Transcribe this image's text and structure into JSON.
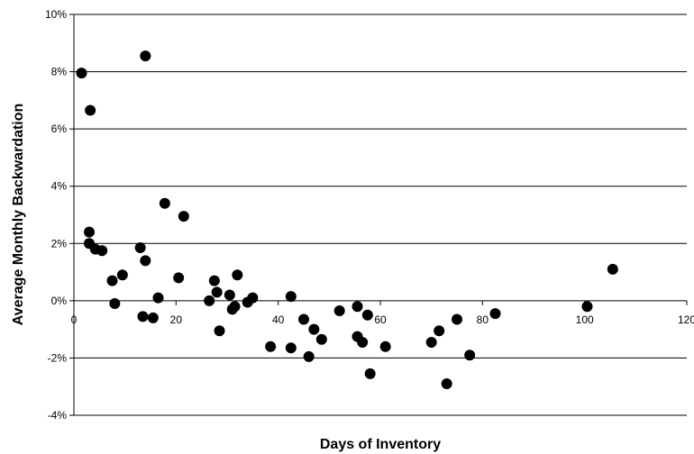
{
  "chart_data": {
    "type": "scatter",
    "title": "",
    "xlabel": "Days of Inventory",
    "ylabel": "Average Monthly Backwardation",
    "xlim": [
      0,
      120
    ],
    "ylim": [
      -4,
      10
    ],
    "x_ticks": [
      0,
      20,
      40,
      60,
      80,
      100,
      120
    ],
    "y_ticks": [
      -4,
      -2,
      0,
      2,
      4,
      6,
      8,
      10
    ],
    "y_unit": "%",
    "grid": "horizontal",
    "legend": "none",
    "marker_color": "#000000",
    "points": [
      {
        "x": 1.5,
        "y": 7.95
      },
      {
        "x": 3.2,
        "y": 6.65
      },
      {
        "x": 14.0,
        "y": 8.55
      },
      {
        "x": 3.0,
        "y": 2.4
      },
      {
        "x": 3.0,
        "y": 2.0
      },
      {
        "x": 4.2,
        "y": 1.8
      },
      {
        "x": 5.5,
        "y": 1.75
      },
      {
        "x": 7.5,
        "y": 0.7
      },
      {
        "x": 8.0,
        "y": -0.1
      },
      {
        "x": 9.5,
        "y": 0.9
      },
      {
        "x": 13.0,
        "y": 1.85
      },
      {
        "x": 14.0,
        "y": 1.4
      },
      {
        "x": 13.5,
        "y": -0.55
      },
      {
        "x": 15.5,
        "y": -0.6
      },
      {
        "x": 16.5,
        "y": 0.1
      },
      {
        "x": 17.8,
        "y": 3.4
      },
      {
        "x": 20.5,
        "y": 0.8
      },
      {
        "x": 21.5,
        "y": 2.95
      },
      {
        "x": 26.5,
        "y": 0.0
      },
      {
        "x": 27.5,
        "y": 0.7
      },
      {
        "x": 28.0,
        "y": 0.3
      },
      {
        "x": 28.5,
        "y": -1.05
      },
      {
        "x": 30.5,
        "y": 0.2
      },
      {
        "x": 31.0,
        "y": -0.3
      },
      {
        "x": 31.5,
        "y": -0.2
      },
      {
        "x": 32.0,
        "y": 0.9
      },
      {
        "x": 34.0,
        "y": -0.05
      },
      {
        "x": 35.0,
        "y": 0.1
      },
      {
        "x": 38.5,
        "y": -1.6
      },
      {
        "x": 42.5,
        "y": 0.15
      },
      {
        "x": 42.5,
        "y": -1.65
      },
      {
        "x": 45.0,
        "y": -0.65
      },
      {
        "x": 46.0,
        "y": -1.95
      },
      {
        "x": 47.0,
        "y": -1.0
      },
      {
        "x": 48.5,
        "y": -1.35
      },
      {
        "x": 52.0,
        "y": -0.35
      },
      {
        "x": 55.5,
        "y": -0.2
      },
      {
        "x": 55.5,
        "y": -1.25
      },
      {
        "x": 56.5,
        "y": -1.45
      },
      {
        "x": 57.5,
        "y": -0.5
      },
      {
        "x": 58.0,
        "y": -2.55
      },
      {
        "x": 61.0,
        "y": -1.6
      },
      {
        "x": 70.0,
        "y": -1.45
      },
      {
        "x": 71.5,
        "y": -1.05
      },
      {
        "x": 73.0,
        "y": -2.9
      },
      {
        "x": 75.0,
        "y": -0.65
      },
      {
        "x": 77.5,
        "y": -1.9
      },
      {
        "x": 82.5,
        "y": -0.45
      },
      {
        "x": 100.5,
        "y": -0.2
      },
      {
        "x": 105.5,
        "y": 1.1
      }
    ]
  }
}
